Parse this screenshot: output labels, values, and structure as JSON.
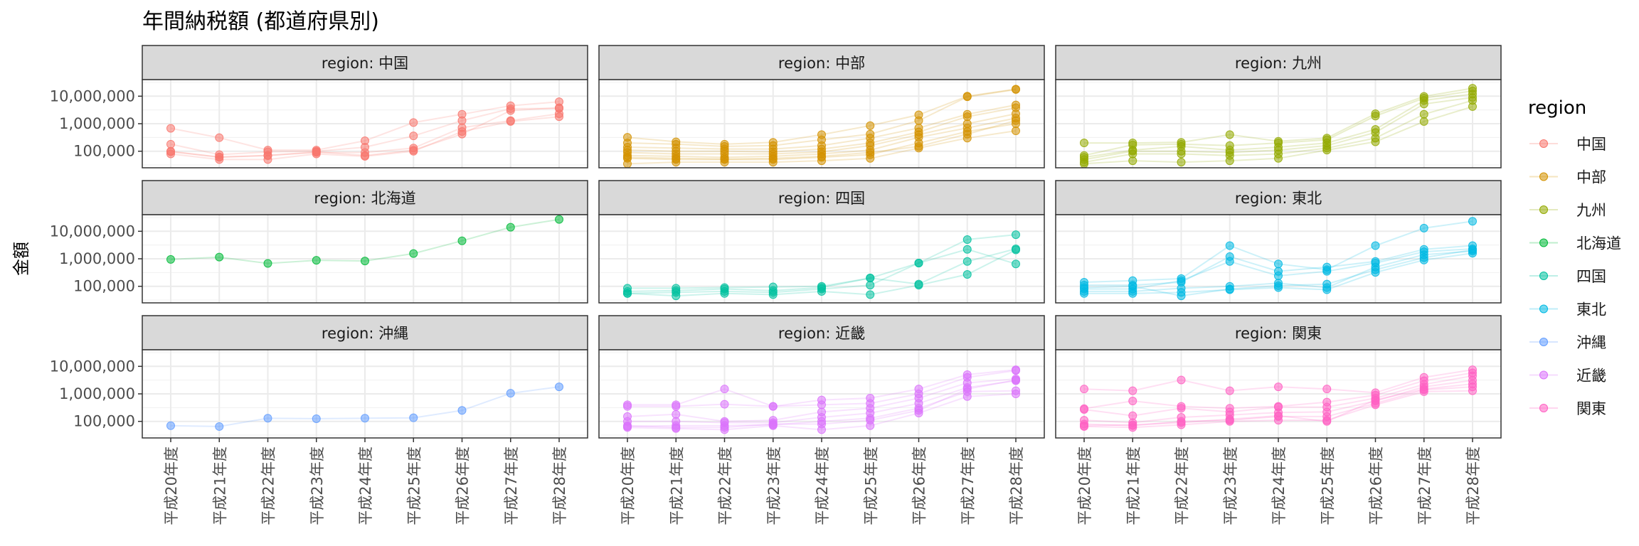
{
  "chart_data": {
    "type": "line",
    "title": "年間納税額 (都道府県別)",
    "ylabel": "金額",
    "xlabel": "",
    "y_scale": "log10",
    "y_ticks": [
      100000,
      1000000,
      10000000
    ],
    "y_tick_labels": [
      "100,000",
      "1,000,000",
      "10,000,000"
    ],
    "ylim": [
      25000,
      40000000
    ],
    "categories": [
      "平成20年度",
      "平成21年度",
      "平成22年度",
      "平成23年度",
      "平成24年度",
      "平成25年度",
      "平成26年度",
      "平成27年度",
      "平成28年度"
    ],
    "grid": true,
    "legend": {
      "title": "region",
      "position": "right"
    },
    "strip_prefix": "region: ",
    "facets": [
      {
        "region": "中国",
        "color": "#F8766D",
        "series": [
          [
            680000,
            310000,
            110000,
            110000,
            240000,
            1100000,
            2200000,
            4500000,
            6300000
          ],
          [
            180000,
            75000,
            95000,
            100000,
            140000,
            360000,
            1300000,
            3500000,
            3600000
          ],
          [
            95000,
            62000,
            70000,
            90000,
            90000,
            130000,
            720000,
            1300000,
            2300000
          ],
          [
            80000,
            50000,
            50000,
            80000,
            65000,
            100000,
            520000,
            1200000,
            1800000
          ],
          [
            100000,
            60000,
            70000,
            95000,
            70000,
            110000,
            420000,
            3000000,
            3800000
          ]
        ]
      },
      {
        "region": "中部",
        "color": "#D39200",
        "series": [
          [
            320000,
            220000,
            180000,
            210000,
            400000,
            850000,
            2100000,
            10000000,
            18000000
          ],
          [
            200000,
            180000,
            150000,
            160000,
            260000,
            420000,
            1300000,
            9500000,
            17500000
          ],
          [
            140000,
            130000,
            120000,
            120000,
            160000,
            300000,
            700000,
            2200000,
            4800000
          ],
          [
            110000,
            100000,
            100000,
            95000,
            120000,
            200000,
            500000,
            1800000,
            3800000
          ],
          [
            90000,
            80000,
            80000,
            80000,
            95000,
            160000,
            400000,
            1000000,
            2300000
          ],
          [
            70000,
            65000,
            60000,
            65000,
            80000,
            110000,
            320000,
            700000,
            1600000
          ],
          [
            55000,
            50000,
            50000,
            50000,
            60000,
            75000,
            200000,
            520000,
            1000000
          ],
          [
            35000,
            40000,
            40000,
            40000,
            45000,
            55000,
            130000,
            300000,
            550000
          ],
          [
            60000,
            55000,
            52000,
            55000,
            65000,
            90000,
            150000,
            420000,
            1300000
          ]
        ]
      },
      {
        "region": "九州",
        "color": "#93AA00",
        "series": [
          [
            200000,
            200000,
            210000,
            400000,
            230000,
            300000,
            2300000,
            9800000,
            19500000
          ],
          [
            70000,
            170000,
            180000,
            160000,
            200000,
            260000,
            1900000,
            8500000,
            15500000
          ],
          [
            60000,
            110000,
            150000,
            110000,
            140000,
            200000,
            620000,
            7000000,
            12000000
          ],
          [
            50000,
            100000,
            100000,
            90000,
            110000,
            160000,
            480000,
            5200000,
            9000000
          ],
          [
            40000,
            80000,
            80000,
            70000,
            80000,
            130000,
            300000,
            2200000,
            7000000
          ],
          [
            35000,
            45000,
            40000,
            45000,
            55000,
            110000,
            220000,
            1200000,
            4200000
          ]
        ]
      },
      {
        "region": "北海道",
        "color": "#00BA38",
        "series": [
          [
            950000,
            1150000,
            680000,
            880000,
            830000,
            1550000,
            4500000,
            14000000,
            27000000
          ]
        ]
      },
      {
        "region": "四国",
        "color": "#00C19F",
        "series": [
          [
            85000,
            85000,
            90000,
            95000,
            100000,
            200000,
            700000,
            5000000,
            7500000
          ],
          [
            65000,
            70000,
            80000,
            70000,
            90000,
            200000,
            120000,
            800000,
            2300000
          ],
          [
            55000,
            60000,
            65000,
            60000,
            80000,
            110000,
            700000,
            2200000,
            650000
          ],
          [
            55000,
            45000,
            55000,
            50000,
            65000,
            50000,
            110000,
            270000,
            2100000
          ]
        ]
      },
      {
        "region": "東北",
        "color": "#00B9E3",
        "series": [
          [
            140000,
            160000,
            190000,
            3000000,
            650000,
            400000,
            3000000,
            13000000,
            23000000
          ],
          [
            110000,
            110000,
            140000,
            1200000,
            350000,
            500000,
            800000,
            2200000,
            3000000
          ],
          [
            80000,
            80000,
            160000,
            800000,
            240000,
            350000,
            700000,
            1800000,
            2300000
          ],
          [
            65000,
            65000,
            85000,
            100000,
            130000,
            90000,
            500000,
            1400000,
            1900000
          ],
          [
            55000,
            55000,
            60000,
            75000,
            90000,
            75000,
            320000,
            900000,
            1600000
          ],
          [
            90000,
            100000,
            45000,
            80000,
            105000,
            120000,
            400000,
            1100000,
            2100000
          ]
        ]
      },
      {
        "region": "沖縄",
        "color": "#619CFF",
        "series": [
          [
            70000,
            65000,
            130000,
            125000,
            130000,
            135000,
            250000,
            1050000,
            1800000
          ]
        ]
      },
      {
        "region": "近畿",
        "color": "#DB72FB",
        "series": [
          [
            400000,
            400000,
            1500000,
            350000,
            600000,
            700000,
            1500000,
            5000000,
            7500000
          ],
          [
            350000,
            350000,
            420000,
            350000,
            400000,
            450000,
            1000000,
            4000000,
            7000000
          ],
          [
            150000,
            180000,
            100000,
            110000,
            220000,
            300000,
            700000,
            2500000,
            3500000
          ],
          [
            100000,
            100000,
            90000,
            90000,
            140000,
            200000,
            450000,
            1700000,
            3000000
          ],
          [
            65000,
            70000,
            70000,
            75000,
            100000,
            130000,
            300000,
            1200000,
            1300000
          ],
          [
            60000,
            55000,
            50000,
            70000,
            50000,
            70000,
            200000,
            800000,
            1000000
          ],
          [
            70000,
            60000,
            60000,
            80000,
            80000,
            110000,
            250000,
            1500000,
            3200000
          ]
        ]
      },
      {
        "region": "関東",
        "color": "#FF61C3",
        "series": [
          [
            1500000,
            1300000,
            3200000,
            1300000,
            1800000,
            1500000,
            1100000,
            4000000,
            7500000
          ],
          [
            290000,
            550000,
            350000,
            300000,
            350000,
            500000,
            900000,
            3000000,
            5800000
          ],
          [
            270000,
            160000,
            300000,
            220000,
            330000,
            330000,
            700000,
            2200000,
            4500000
          ],
          [
            110000,
            90000,
            140000,
            170000,
            210000,
            220000,
            550000,
            1800000,
            3100000
          ],
          [
            80000,
            70000,
            100000,
            110000,
            150000,
            150000,
            450000,
            1400000,
            1800000
          ],
          [
            65000,
            60000,
            75000,
            100000,
            110000,
            110000,
            400000,
            1200000,
            1300000
          ],
          [
            70000,
            75000,
            90000,
            120000,
            160000,
            100000,
            600000,
            1500000,
            2300000
          ]
        ]
      }
    ]
  }
}
